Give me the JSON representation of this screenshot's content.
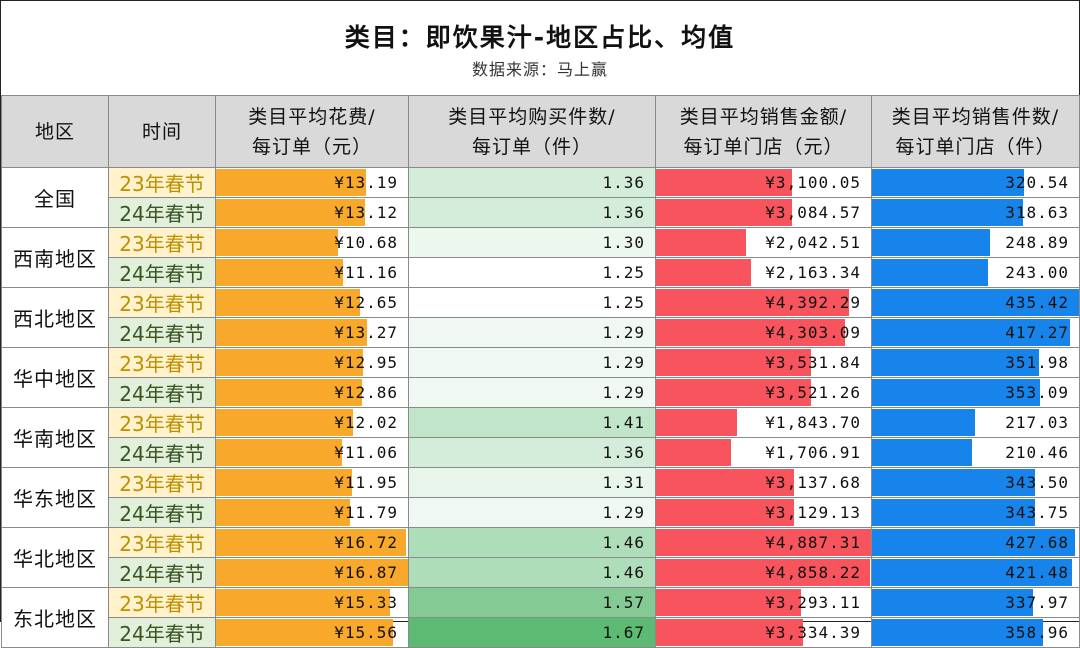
{
  "title": "类目：即饮果汁-地区占比、均值",
  "subtitle": "数据来源：马上赢",
  "headers": {
    "region": "地区",
    "time": "时间",
    "avg_spend": [
      "类目平均花费/",
      "每订单（元）"
    ],
    "avg_qty": [
      "类目平均购买件数/",
      "每订单（件）"
    ],
    "avg_sales_amt": [
      "类目平均销售金额/",
      "每订单门店（元）"
    ],
    "avg_sales_qty": [
      "类目平均销售件数/",
      "每订单门店（件）"
    ]
  },
  "colors": {
    "spend_bar": "#f8a82a",
    "sales_amt_bar": "#f8545e",
    "sales_qty_bar": "#1684ea",
    "qty_heat_low": "#ffffff",
    "qty_heat_high": "#5cba72",
    "y23_bg": "#fff2cc",
    "y24_bg": "#e2efda"
  },
  "chart_data": {
    "type": "table",
    "title": "类目：即饮果汁-地区占比、均值",
    "periods": [
      "23年春节",
      "24年春节"
    ],
    "regions": [
      {
        "name": "全国",
        "rows": [
          {
            "time": "23年春节",
            "avg_spend": "¥13.19",
            "avg_spend_v": 13.19,
            "avg_qty": "1.36",
            "avg_qty_v": 1.36,
            "avg_sales_amt": "¥3,100.05",
            "avg_sales_amt_v": 3100.05,
            "avg_sales_qty": "320.54",
            "avg_sales_qty_v": 320.54
          },
          {
            "time": "24年春节",
            "avg_spend": "¥13.12",
            "avg_spend_v": 13.12,
            "avg_qty": "1.36",
            "avg_qty_v": 1.36,
            "avg_sales_amt": "¥3,084.57",
            "avg_sales_amt_v": 3084.57,
            "avg_sales_qty": "318.63",
            "avg_sales_qty_v": 318.63
          }
        ]
      },
      {
        "name": "西南地区",
        "rows": [
          {
            "time": "23年春节",
            "avg_spend": "¥10.68",
            "avg_spend_v": 10.68,
            "avg_qty": "1.30",
            "avg_qty_v": 1.3,
            "avg_sales_amt": "¥2,042.51",
            "avg_sales_amt_v": 2042.51,
            "avg_sales_qty": "248.89",
            "avg_sales_qty_v": 248.89
          },
          {
            "time": "24年春节",
            "avg_spend": "¥11.16",
            "avg_spend_v": 11.16,
            "avg_qty": "1.25",
            "avg_qty_v": 1.25,
            "avg_sales_amt": "¥2,163.34",
            "avg_sales_amt_v": 2163.34,
            "avg_sales_qty": "243.00",
            "avg_sales_qty_v": 243.0
          }
        ]
      },
      {
        "name": "西北地区",
        "rows": [
          {
            "time": "23年春节",
            "avg_spend": "¥12.65",
            "avg_spend_v": 12.65,
            "avg_qty": "1.25",
            "avg_qty_v": 1.25,
            "avg_sales_amt": "¥4,392.29",
            "avg_sales_amt_v": 4392.29,
            "avg_sales_qty": "435.42",
            "avg_sales_qty_v": 435.42
          },
          {
            "time": "24年春节",
            "avg_spend": "¥13.27",
            "avg_spend_v": 13.27,
            "avg_qty": "1.29",
            "avg_qty_v": 1.29,
            "avg_sales_amt": "¥4,303.09",
            "avg_sales_amt_v": 4303.09,
            "avg_sales_qty": "417.27",
            "avg_sales_qty_v": 417.27
          }
        ]
      },
      {
        "name": "华中地区",
        "rows": [
          {
            "time": "23年春节",
            "avg_spend": "¥12.95",
            "avg_spend_v": 12.95,
            "avg_qty": "1.29",
            "avg_qty_v": 1.29,
            "avg_sales_amt": "¥3,531.84",
            "avg_sales_amt_v": 3531.84,
            "avg_sales_qty": "351.98",
            "avg_sales_qty_v": 351.98
          },
          {
            "time": "24年春节",
            "avg_spend": "¥12.86",
            "avg_spend_v": 12.86,
            "avg_qty": "1.29",
            "avg_qty_v": 1.29,
            "avg_sales_amt": "¥3,521.26",
            "avg_sales_amt_v": 3521.26,
            "avg_sales_qty": "353.09",
            "avg_sales_qty_v": 353.09
          }
        ]
      },
      {
        "name": "华南地区",
        "rows": [
          {
            "time": "23年春节",
            "avg_spend": "¥12.02",
            "avg_spend_v": 12.02,
            "avg_qty": "1.41",
            "avg_qty_v": 1.41,
            "avg_sales_amt": "¥1,843.70",
            "avg_sales_amt_v": 1843.7,
            "avg_sales_qty": "217.03",
            "avg_sales_qty_v": 217.03
          },
          {
            "time": "24年春节",
            "avg_spend": "¥11.06",
            "avg_spend_v": 11.06,
            "avg_qty": "1.36",
            "avg_qty_v": 1.36,
            "avg_sales_amt": "¥1,706.91",
            "avg_sales_amt_v": 1706.91,
            "avg_sales_qty": "210.46",
            "avg_sales_qty_v": 210.46
          }
        ]
      },
      {
        "name": "华东地区",
        "rows": [
          {
            "time": "23年春节",
            "avg_spend": "¥11.95",
            "avg_spend_v": 11.95,
            "avg_qty": "1.31",
            "avg_qty_v": 1.31,
            "avg_sales_amt": "¥3,137.68",
            "avg_sales_amt_v": 3137.68,
            "avg_sales_qty": "343.50",
            "avg_sales_qty_v": 343.5
          },
          {
            "time": "24年春节",
            "avg_spend": "¥11.79",
            "avg_spend_v": 11.79,
            "avg_qty": "1.29",
            "avg_qty_v": 1.29,
            "avg_sales_amt": "¥3,129.13",
            "avg_sales_amt_v": 3129.13,
            "avg_sales_qty": "343.75",
            "avg_sales_qty_v": 343.75
          }
        ]
      },
      {
        "name": "华北地区",
        "rows": [
          {
            "time": "23年春节",
            "avg_spend": "¥16.72",
            "avg_spend_v": 16.72,
            "avg_qty": "1.46",
            "avg_qty_v": 1.46,
            "avg_sales_amt": "¥4,887.31",
            "avg_sales_amt_v": 4887.31,
            "avg_sales_qty": "427.68",
            "avg_sales_qty_v": 427.68
          },
          {
            "time": "24年春节",
            "avg_spend": "¥16.87",
            "avg_spend_v": 16.87,
            "avg_qty": "1.46",
            "avg_qty_v": 1.46,
            "avg_sales_amt": "¥4,858.22",
            "avg_sales_amt_v": 4858.22,
            "avg_sales_qty": "421.48",
            "avg_sales_qty_v": 421.48
          }
        ]
      },
      {
        "name": "东北地区",
        "rows": [
          {
            "time": "23年春节",
            "avg_spend": "¥15.33",
            "avg_spend_v": 15.33,
            "avg_qty": "1.57",
            "avg_qty_v": 1.57,
            "avg_sales_amt": "¥3,293.11",
            "avg_sales_amt_v": 3293.11,
            "avg_sales_qty": "337.97",
            "avg_sales_qty_v": 337.97
          },
          {
            "time": "24年春节",
            "avg_spend": "¥15.56",
            "avg_spend_v": 15.56,
            "avg_qty": "1.67",
            "avg_qty_v": 1.67,
            "avg_sales_amt": "¥3,334.39",
            "avg_sales_amt_v": 3334.39,
            "avg_sales_qty": "358.96",
            "avg_sales_qty_v": 358.96
          }
        ]
      }
    ]
  }
}
